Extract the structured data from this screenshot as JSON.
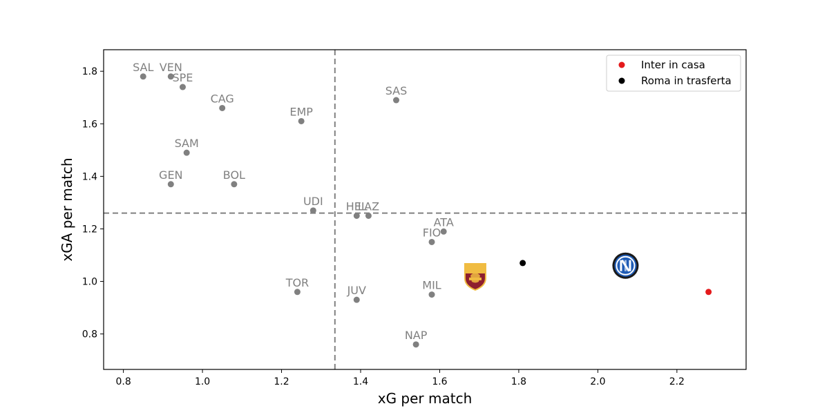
{
  "chart_data": {
    "type": "scatter",
    "title": "",
    "xlabel": "xG per match",
    "ylabel": "xGA per match",
    "xlim": [
      0.75,
      2.375
    ],
    "ylim": [
      0.665,
      1.882
    ],
    "xticks": [
      "0.8",
      "1.0",
      "1.2",
      "1.4",
      "1.6",
      "1.8",
      "2.0",
      "2.2"
    ],
    "yticks": [
      "0.8",
      "1.0",
      "1.2",
      "1.4",
      "1.6",
      "1.8"
    ],
    "xtick_values": [
      0.8,
      1.0,
      1.2,
      1.4,
      1.6,
      1.8,
      2.0,
      2.2
    ],
    "ytick_values": [
      0.8,
      1.0,
      1.2,
      1.4,
      1.6,
      1.8
    ],
    "grid": false,
    "reference_lines": {
      "x_mean": 1.335,
      "y_mean": 1.26,
      "style": "dashed",
      "color": "#808080"
    },
    "teams": [
      {
        "label": "SAL",
        "x": 0.85,
        "y": 1.78
      },
      {
        "label": "VEN",
        "x": 0.92,
        "y": 1.78
      },
      {
        "label": "SPE",
        "x": 0.95,
        "y": 1.74
      },
      {
        "label": "CAG",
        "x": 1.05,
        "y": 1.66
      },
      {
        "label": "EMP",
        "x": 1.25,
        "y": 1.61
      },
      {
        "label": "SAS",
        "x": 1.49,
        "y": 1.69
      },
      {
        "label": "SAM",
        "x": 0.96,
        "y": 1.49
      },
      {
        "label": "GEN",
        "x": 0.92,
        "y": 1.37
      },
      {
        "label": "BOL",
        "x": 1.08,
        "y": 1.37
      },
      {
        "label": "UDI",
        "x": 1.28,
        "y": 1.27
      },
      {
        "label": "HEL",
        "x": 1.39,
        "y": 1.25
      },
      {
        "label": "LAZ",
        "x": 1.42,
        "y": 1.25
      },
      {
        "label": "ATA",
        "x": 1.61,
        "y": 1.19
      },
      {
        "label": "FIO",
        "x": 1.58,
        "y": 1.15
      },
      {
        "label": "TOR",
        "x": 1.24,
        "y": 0.96
      },
      {
        "label": "JUV",
        "x": 1.39,
        "y": 0.93
      },
      {
        "label": "MIL",
        "x": 1.58,
        "y": 0.95
      },
      {
        "label": "NAP",
        "x": 1.54,
        "y": 0.76
      }
    ],
    "team_color": "#808080",
    "series": [
      {
        "name": "Inter in casa",
        "color": "#e41a1c",
        "x": 2.28,
        "y": 0.96
      },
      {
        "name": "Roma in trasferta",
        "color": "#000000",
        "x": 1.81,
        "y": 1.07
      }
    ],
    "logos": [
      {
        "icon": "roma-crest-icon",
        "x": 1.69,
        "y": 1.02
      },
      {
        "icon": "inter-crest-icon",
        "x": 2.07,
        "y": 1.06
      }
    ],
    "legend_position": "top-right"
  }
}
